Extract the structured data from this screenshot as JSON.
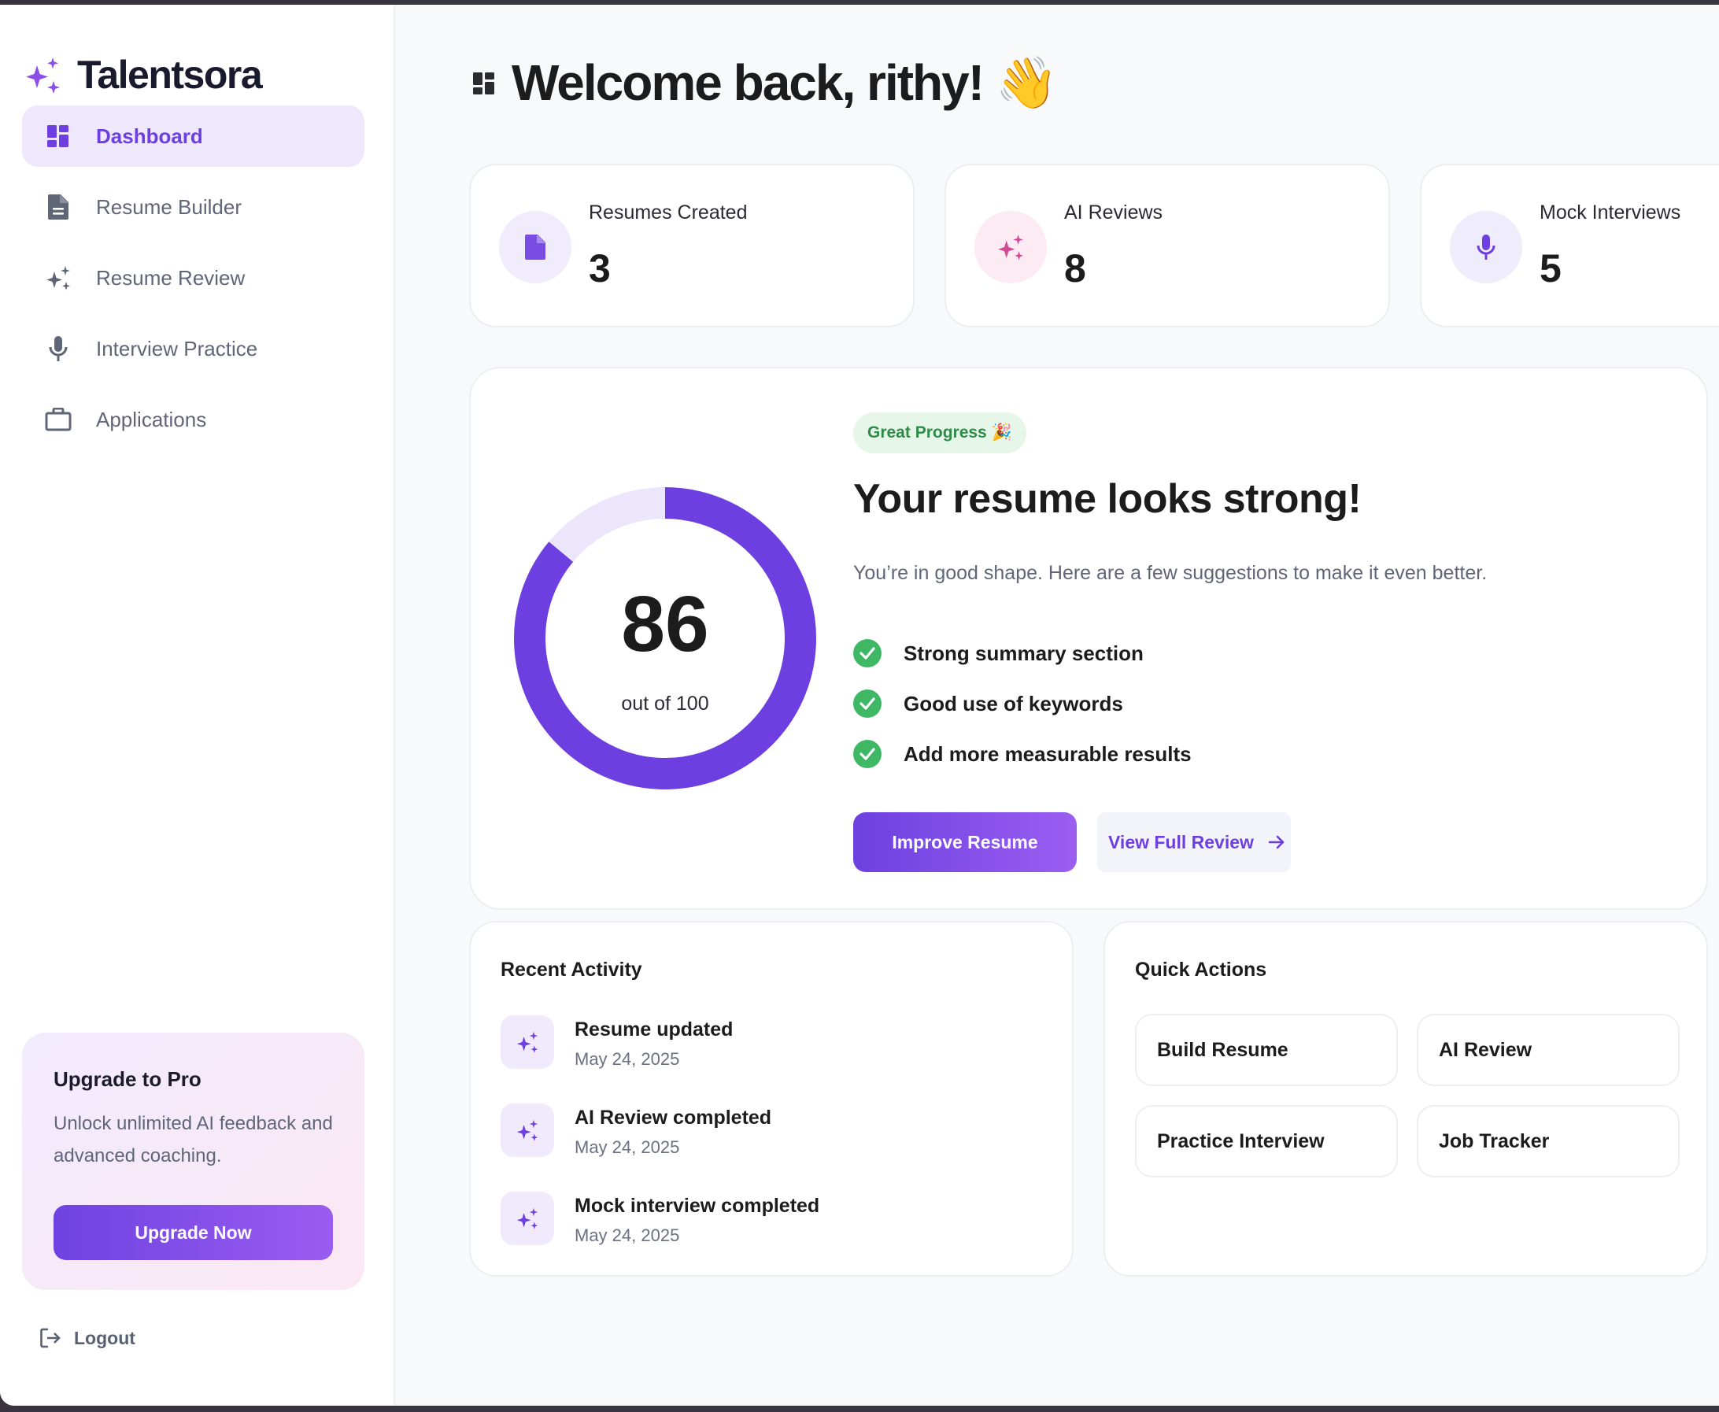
{
  "app": {
    "name": "Talentsora"
  },
  "colors": {
    "accent": "#6d3fe0",
    "accent_light": "#efe8fd",
    "success": "#3fb866",
    "pink": "#d04a93"
  },
  "sidebar": {
    "items": [
      {
        "label": "Dashboard",
        "icon": "dashboard-icon",
        "active": true
      },
      {
        "label": "Resume Builder",
        "icon": "document-icon",
        "active": false
      },
      {
        "label": "Resume Review",
        "icon": "sparkles-icon",
        "active": false
      },
      {
        "label": "Interview Practice",
        "icon": "microphone-icon",
        "active": false
      },
      {
        "label": "Applications",
        "icon": "briefcase-icon",
        "active": false
      }
    ],
    "upgrade": {
      "title": "Upgrade to Pro",
      "description": "Unlock unlimited AI feedback and advanced coaching.",
      "button": "Upgrade Now"
    },
    "logout": "Logout"
  },
  "header": {
    "title": "Welcome back, rithy! 👋"
  },
  "stats": [
    {
      "label": "Resumes Created",
      "value": "3",
      "icon": "document-icon"
    },
    {
      "label": "AI Reviews",
      "value": "8",
      "icon": "sparkles-icon"
    },
    {
      "label": "Mock Interviews",
      "value": "5",
      "icon": "microphone-icon"
    }
  ],
  "score": {
    "value": "86",
    "max_label": "out of 100",
    "percent": 86,
    "badge": "Great Progress 🎉",
    "title": "Your resume looks strong!",
    "description": "You’re in good shape. Here are a few suggestions to make it even better.",
    "checks": [
      "Strong summary section",
      "Good use of keywords",
      "Add more measurable results"
    ],
    "primary_button": "Improve Resume",
    "secondary_button": "View Full Review"
  },
  "activity": {
    "title": "Recent Activity",
    "items": [
      {
        "title": "Resume updated",
        "date": "May 24, 2025"
      },
      {
        "title": "AI Review completed",
        "date": "May 24, 2025"
      },
      {
        "title": "Mock interview completed",
        "date": "May 24, 2025"
      }
    ]
  },
  "quick_actions": {
    "title": "Quick Actions",
    "items": [
      "Build Resume",
      "AI Review",
      "Practice Interview",
      "Job Tracker"
    ]
  }
}
